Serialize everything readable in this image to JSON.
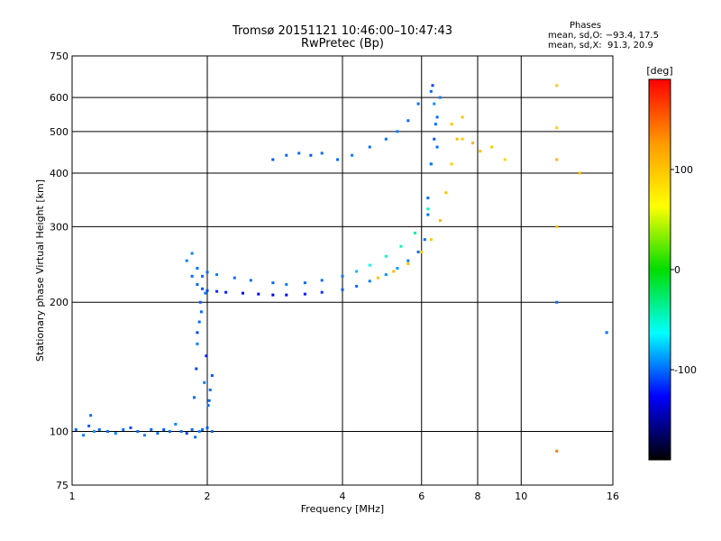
{
  "title_line1": "Tromsø 20151121 10:46:00–10:47:43",
  "title_line2": "RwPretec (Bp)",
  "stats": {
    "heading": "Phases",
    "o_line": "mean, sd,O: −93.4, 17.5",
    "x_line": "mean, sd,X:  91.3, 20.9"
  },
  "chart_data": {
    "type": "scatter",
    "xlabel": "Frequency [MHz]",
    "ylabel": "Stationary phase Virtual Height [km]",
    "xscale": "log",
    "yscale": "log",
    "xlim": [
      1,
      16
    ],
    "ylim": [
      75,
      750
    ],
    "xticks": [
      1,
      2,
      4,
      6,
      8,
      10,
      16
    ],
    "yticks": [
      75,
      100,
      200,
      300,
      400,
      500,
      600,
      750
    ],
    "grid": true,
    "colorbar": {
      "label": "[deg]",
      "range": [
        -190,
        190
      ],
      "ticks": [
        100,
        0,
        -100
      ],
      "colors": [
        "#ff0000",
        "#ff9900",
        "#ffff00",
        "#00dd00",
        "#00ffff",
        "#0000ff",
        "#000000"
      ]
    },
    "series": [
      {
        "x": [
          1.02,
          1.06,
          1.09,
          1.1,
          1.12,
          1.15,
          1.2,
          1.25,
          1.3,
          1.35,
          1.4,
          1.45,
          1.5,
          1.55,
          1.6,
          1.65,
          1.7,
          1.75,
          1.8,
          1.85,
          1.88,
          1.92,
          1.95,
          2.0,
          2.05
        ],
        "y": [
          101,
          98,
          103,
          109,
          100,
          101,
          100,
          99,
          101,
          102,
          100,
          98,
          101,
          99,
          101,
          100,
          104,
          100,
          99,
          101,
          97,
          100,
          101,
          102,
          100
        ],
        "phase": [
          -100,
          -95,
          -105,
          -100,
          -90,
          -100,
          -100,
          -95,
          -100,
          -110,
          -100,
          -95,
          -100,
          -100,
          -105,
          -100,
          -95,
          -100,
          -110,
          -100,
          -100,
          -95,
          -100,
          -105,
          -100
        ]
      },
      {
        "x": [
          1.87,
          1.89,
          1.9,
          1.92,
          1.93,
          1.95,
          1.97,
          1.99,
          2.01,
          2.03,
          1.9,
          1.94,
          1.98,
          2.02,
          2.05
        ],
        "y": [
          120,
          140,
          160,
          180,
          200,
          230,
          130,
          150,
          115,
          125,
          170,
          190,
          210,
          118,
          135
        ],
        "phase": [
          -100,
          -110,
          -95,
          -100,
          -105,
          -100,
          -95,
          -120,
          -100,
          -100,
          -110,
          -100,
          -95,
          -100,
          -105
        ]
      },
      {
        "x": [
          1.8,
          1.85,
          1.9,
          1.95,
          2.0,
          2.1,
          2.2,
          2.4,
          2.6,
          2.8,
          3.0,
          3.3,
          3.6,
          4.0,
          4.3,
          4.6,
          5.0,
          5.3,
          5.6,
          5.9,
          6.1,
          6.2,
          6.3
        ],
        "y": [
          250,
          230,
          220,
          215,
          213,
          212,
          211,
          210,
          209,
          208,
          208,
          209,
          211,
          214,
          218,
          224,
          232,
          240,
          250,
          262,
          280,
          320,
          420
        ],
        "phase": [
          -95,
          -100,
          -100,
          -105,
          -110,
          -115,
          -120,
          -125,
          -125,
          -130,
          -125,
          -120,
          -115,
          -105,
          -100,
          -95,
          -90,
          -90,
          -95,
          -100,
          -100,
          -100,
          -100
        ]
      },
      {
        "x": [
          1.85,
          1.9,
          2.0,
          2.1,
          2.3,
          2.5,
          2.8,
          3.0,
          3.3,
          3.6,
          4.0,
          4.3,
          4.6,
          5.0,
          5.4,
          5.8,
          6.2
        ],
        "y": [
          260,
          240,
          235,
          232,
          228,
          225,
          222,
          220,
          222,
          225,
          230,
          236,
          244,
          256,
          270,
          290,
          330
        ],
        "phase": [
          -95,
          -100,
          -100,
          -95,
          -100,
          -100,
          -100,
          -95,
          -100,
          -100,
          -95,
          -80,
          -60,
          -50,
          -45,
          -40,
          -50
        ]
      },
      {
        "x": [
          4.8,
          5.2,
          5.6,
          6.0,
          6.3,
          6.6,
          6.8,
          7.0,
          7.2,
          7.4
        ],
        "y": [
          228,
          236,
          246,
          262,
          280,
          310,
          360,
          420,
          480,
          540
        ],
        "phase": [
          100,
          105,
          100,
          95,
          100,
          110,
          100,
          95,
          105,
          100
        ]
      },
      {
        "x": [
          6.2,
          6.3,
          6.4,
          6.5,
          6.6,
          6.3,
          6.4,
          6.5,
          6.35,
          6.45
        ],
        "y": [
          350,
          420,
          480,
          540,
          600,
          620,
          580,
          460,
          640,
          520
        ],
        "phase": [
          -100,
          -95,
          -105,
          -100,
          -95,
          -100,
          -90,
          -100,
          -110,
          -100
        ]
      },
      {
        "x": [
          2.8,
          3.0,
          3.2,
          3.4,
          3.6,
          3.9,
          4.2,
          4.6,
          5.0,
          5.3,
          5.6,
          5.9
        ],
        "y": [
          430,
          440,
          445,
          440,
          445,
          430,
          440,
          460,
          480,
          500,
          530,
          580
        ],
        "phase": [
          -105,
          -100,
          -100,
          -105,
          -100,
          -100,
          -95,
          -100,
          -100,
          -95,
          -100,
          -100
        ]
      },
      {
        "x": [
          7.0,
          7.4,
          7.8,
          8.1,
          8.6,
          9.2,
          12.0,
          12.0,
          12.0,
          12.0,
          12.0,
          12.0,
          13.5,
          15.5
        ],
        "y": [
          520,
          480,
          470,
          450,
          460,
          430,
          640,
          510,
          430,
          300,
          200,
          90,
          400,
          170
        ],
        "phase": [
          100,
          95,
          110,
          100,
          95,
          90,
          100,
          95,
          110,
          100,
          -100,
          140,
          105,
          -100
        ]
      }
    ]
  }
}
